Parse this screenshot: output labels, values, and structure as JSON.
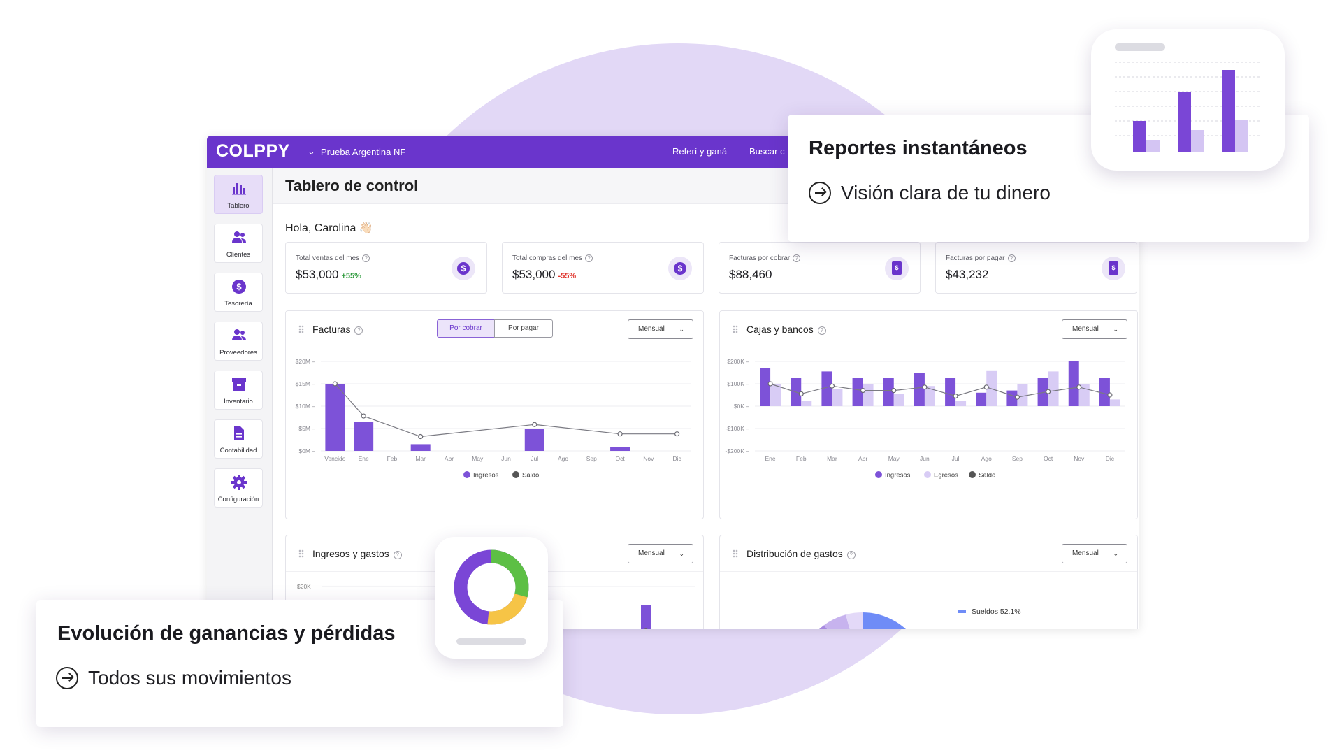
{
  "app": {
    "logo": "COLPPY",
    "company": "Prueba Argentina NF",
    "top_links": [
      "Referí y ganá",
      "Buscar c"
    ]
  },
  "sidebar": {
    "items": [
      {
        "label": "Tablero",
        "icon": "bar-chart-icon",
        "active": true
      },
      {
        "label": "Clientes",
        "icon": "users-icon",
        "active": false
      },
      {
        "label": "Tesorería",
        "icon": "dollar-icon",
        "active": false
      },
      {
        "label": "Proveedores",
        "icon": "users-icon",
        "active": false
      },
      {
        "label": "Inventario",
        "icon": "archive-icon",
        "active": false
      },
      {
        "label": "Contabilidad",
        "icon": "document-icon",
        "active": false
      },
      {
        "label": "Configuración",
        "icon": "gear-icon",
        "active": false
      }
    ]
  },
  "page": {
    "title": "Tablero de control",
    "greeting": "Hola, Carolina 👋🏻"
  },
  "kpis": [
    {
      "label": "Total ventas del mes",
      "value": "$53,000",
      "change": "+55%",
      "change_color": "#2e9a3c",
      "icon": "dollar-icon"
    },
    {
      "label": "Total compras del mes",
      "value": "$53,000",
      "change": "-55%",
      "change_color": "#e0342c",
      "icon": "dollar-icon"
    },
    {
      "label": "Facturas por cobrar",
      "value": "$88,460",
      "change": "",
      "icon": "invoice-icon"
    },
    {
      "label": "Facturas por pagar",
      "value": "$43,232",
      "change": "",
      "icon": "invoice-icon"
    }
  ],
  "panels": {
    "facturas": {
      "title": "Facturas",
      "seg": [
        "Por cobrar",
        "Por pagar"
      ],
      "period": "Mensual"
    },
    "cajas": {
      "title": "Cajas y bancos",
      "period": "Mensual"
    },
    "ingresos": {
      "title": "Ingresos y gastos",
      "period": "Mensual"
    },
    "distribucion": {
      "title": "Distribución de gastos",
      "period": "Mensual"
    }
  },
  "chart_data": [
    {
      "type": "bar",
      "id": "facturas",
      "categories": [
        "Vencido",
        "Ene",
        "Feb",
        "Mar",
        "Abr",
        "May",
        "Jun",
        "Jul",
        "Ago",
        "Sep",
        "Oct",
        "Nov",
        "Dic"
      ],
      "yticks": [
        "$20M",
        "$15M",
        "$10M",
        "$5M",
        "$0M"
      ],
      "ylim": [
        0,
        20
      ],
      "series": [
        {
          "name": "Ingresos",
          "type": "bar",
          "color": "#7d52d8",
          "values": [
            15,
            6.5,
            0,
            1.5,
            0,
            0,
            0,
            5,
            0,
            0,
            0.8,
            0,
            0
          ]
        },
        {
          "name": "Saldo",
          "type": "line",
          "color": "#555555",
          "values": [
            15,
            7.8,
            null,
            3.2,
            null,
            null,
            null,
            5.9,
            null,
            null,
            3.8,
            null,
            3.8
          ]
        }
      ],
      "legend": "bottom"
    },
    {
      "type": "bar",
      "id": "cajas",
      "categories": [
        "Ene",
        "Feb",
        "Mar",
        "Abr",
        "May",
        "Jun",
        "Jul",
        "Ago",
        "Sep",
        "Oct",
        "Nov",
        "Dic"
      ],
      "yticks": [
        "$200K",
        "$100K",
        "$0K",
        "-$100K",
        "-$200K"
      ],
      "ylim": [
        -200,
        200
      ],
      "series": [
        {
          "name": "Ingresos",
          "type": "bar",
          "color": "#7d52d8",
          "values": [
            170,
            125,
            155,
            125,
            125,
            150,
            125,
            60,
            70,
            125,
            200,
            125
          ]
        },
        {
          "name": "Egresos",
          "type": "bar",
          "color": "#d8ccf5",
          "values": [
            100,
            25,
            75,
            100,
            55,
            90,
            25,
            160,
            100,
            155,
            100,
            30
          ]
        },
        {
          "name": "Saldo",
          "type": "line",
          "color": "#555555",
          "values": [
            100,
            55,
            90,
            70,
            70,
            85,
            45,
            85,
            40,
            65,
            85,
            50
          ]
        }
      ],
      "legend": "bottom"
    }
  ],
  "ingresos_ticks": [
    "$20K"
  ],
  "distribucion_legend": "Sueldos 52.1%",
  "cards": {
    "reportes": {
      "title": "Reportes instantáneos",
      "subtitle": "Visión clara de tu dinero"
    },
    "evolucion": {
      "title": "Evolución de ganancias y pérdidas",
      "subtitle": "Todos sus movimientos"
    }
  },
  "colors": {
    "brand": "#6a35cc",
    "accent_light": "#d8ccf5",
    "bg_circle": "#e2d8f6"
  }
}
